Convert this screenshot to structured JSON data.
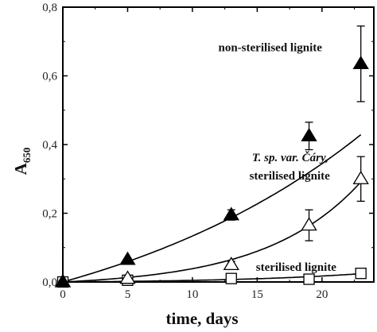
{
  "chart_data": {
    "type": "scatter",
    "xlabel": "time, days",
    "ylabel_main": "A",
    "ylabel_sub": "650",
    "xlim": [
      0,
      24
    ],
    "ylim": [
      0,
      0.8
    ],
    "x_ticks": [
      {
        "value": 0,
        "label": "0"
      },
      {
        "value": 5,
        "label": "5"
      },
      {
        "value": 10,
        "label": "10"
      },
      {
        "value": 15,
        "label": "15"
      },
      {
        "value": 20,
        "label": "20"
      }
    ],
    "y_ticks": [
      {
        "value": 0,
        "label": "0,0"
      },
      {
        "value": 0.2,
        "label": "0,2"
      },
      {
        "value": 0.4,
        "label": "0,4"
      },
      {
        "value": 0.6,
        "label": "0,6"
      },
      {
        "value": 0.8,
        "label": "0,8"
      }
    ],
    "grid": false,
    "series": [
      {
        "marker": "filled-triangle",
        "color": "#000000",
        "x": [
          0,
          5,
          13,
          19,
          23
        ],
        "y": [
          0.0,
          0.065,
          0.195,
          0.425,
          0.635
        ],
        "err": [
          0.0,
          0.0,
          0.015,
          0.04,
          0.11
        ],
        "fit_scale": 0.232,
        "fit_rate": 0.0455
      },
      {
        "marker": "open-triangle",
        "color": "#000000",
        "x": [
          0,
          5,
          13,
          19,
          23
        ],
        "y": [
          0.0,
          0.01,
          0.05,
          0.165,
          0.3
        ],
        "err": [
          0.0,
          0.0,
          0.01,
          0.045,
          0.065
        ],
        "fit_scale": 0.0134,
        "fit_rate": 0.1358
      },
      {
        "marker": "open-square",
        "color": "#000000",
        "x": [
          0,
          5,
          13,
          19,
          23
        ],
        "y": [
          0.0,
          0.005,
          0.01,
          0.008,
          0.025
        ],
        "err": [
          0.0,
          0.0,
          0.0,
          0.0,
          0.0
        ],
        "fit_scale": 0.0027,
        "fit_rate": 0.1
      }
    ],
    "annotations": [
      {
        "text": "non-sterilised lignite",
        "style": "bold",
        "x": 12.0,
        "y": 0.672
      },
      {
        "text": "T. sp. var. Čáry,",
        "style": "italic",
        "x": 14.6,
        "y": 0.352
      },
      {
        "text": "sterilised lignite",
        "style": "bold",
        "x": 14.4,
        "y": 0.298
      },
      {
        "text": "sterilised lignite",
        "style": "bold",
        "x": 14.9,
        "y": 0.032
      }
    ]
  }
}
